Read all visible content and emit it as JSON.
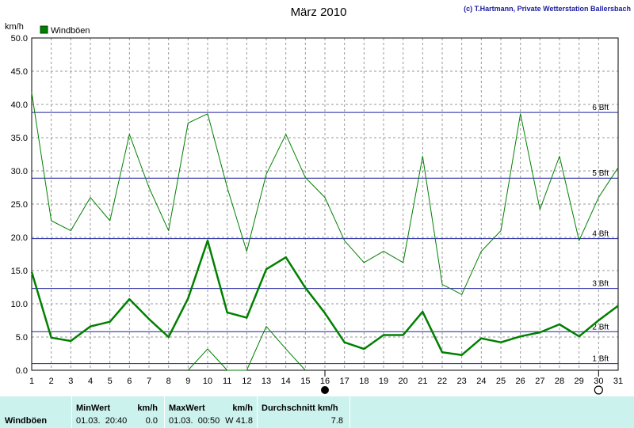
{
  "chart_data": {
    "type": "line",
    "title": "März 2010",
    "copyright": "(c) T.Hartmann, Private Wetterstation Ballersbach",
    "ylabel": "km/h",
    "ylim": [
      0,
      50
    ],
    "yticks": [
      "0.0",
      "5.0",
      "10.0",
      "15.0",
      "20.0",
      "25.0",
      "30.0",
      "35.0",
      "40.0",
      "45.0",
      "50.0"
    ],
    "x": [
      1,
      2,
      3,
      4,
      5,
      6,
      7,
      8,
      9,
      10,
      11,
      12,
      13,
      14,
      15,
      16,
      17,
      18,
      19,
      20,
      21,
      22,
      23,
      24,
      25,
      26,
      27,
      28,
      29,
      30,
      31
    ],
    "legend": "Windböen",
    "legend_color": "#008000",
    "grid": true,
    "beaufort_lines": [
      {
        "label": "1 Bft",
        "value": 1.0
      },
      {
        "label": "2 Bft",
        "value": 5.8
      },
      {
        "label": "3 Bft",
        "value": 12.3
      },
      {
        "label": "4 Bft",
        "value": 19.8
      },
      {
        "label": "5 Bft",
        "value": 28.9
      },
      {
        "label": "6 Bft",
        "value": 38.8
      }
    ],
    "series": [
      {
        "kind": "max",
        "color": "#008000",
        "values": [
          41.8,
          22.5,
          21.0,
          26.0,
          22.5,
          35.5,
          27.5,
          21.0,
          37.2,
          38.6,
          27.5,
          17.9,
          29.5,
          35.5,
          29.0,
          26.0,
          19.5,
          16.2,
          17.9,
          16.2,
          32.2,
          12.9,
          11.4,
          17.9,
          21.0,
          38.6,
          24.2,
          32.2,
          19.5,
          26.0,
          30.5
        ]
      },
      {
        "kind": "avg",
        "color": "#008000",
        "values": [
          14.8,
          4.9,
          4.4,
          6.6,
          7.3,
          10.7,
          7.7,
          5.0,
          10.8,
          19.5,
          8.7,
          7.9,
          15.2,
          17.0,
          12.4,
          8.6,
          4.2,
          3.2,
          5.3,
          5.3,
          8.8,
          2.7,
          2.3,
          4.8,
          4.2,
          5.1,
          5.7,
          6.9,
          5.1,
          7.5,
          9.7
        ]
      },
      {
        "kind": "min",
        "color": "#008000",
        "values": [
          null,
          null,
          null,
          null,
          null,
          null,
          null,
          null,
          0.0,
          3.2,
          0.0,
          0.0,
          6.6,
          3.2,
          0.0,
          null,
          null,
          null,
          null,
          null,
          null,
          null,
          null,
          null,
          null,
          null,
          null,
          null,
          null,
          null,
          null
        ]
      }
    ],
    "markers": [
      {
        "x": 16,
        "type": "filled"
      },
      {
        "x": 30,
        "type": "open"
      }
    ]
  },
  "stats": {
    "series_label": "Windböen",
    "min": {
      "header": "MinWert",
      "unit": "km/h",
      "datetime": "01.03.  20:40",
      "value": "0.0"
    },
    "max": {
      "header": "MaxWert",
      "unit": "km/h",
      "datetime": "01.03.  00:50",
      "value": "W 41.8"
    },
    "avg": {
      "header": "Durchschnitt km/h",
      "value": "7.8"
    }
  }
}
